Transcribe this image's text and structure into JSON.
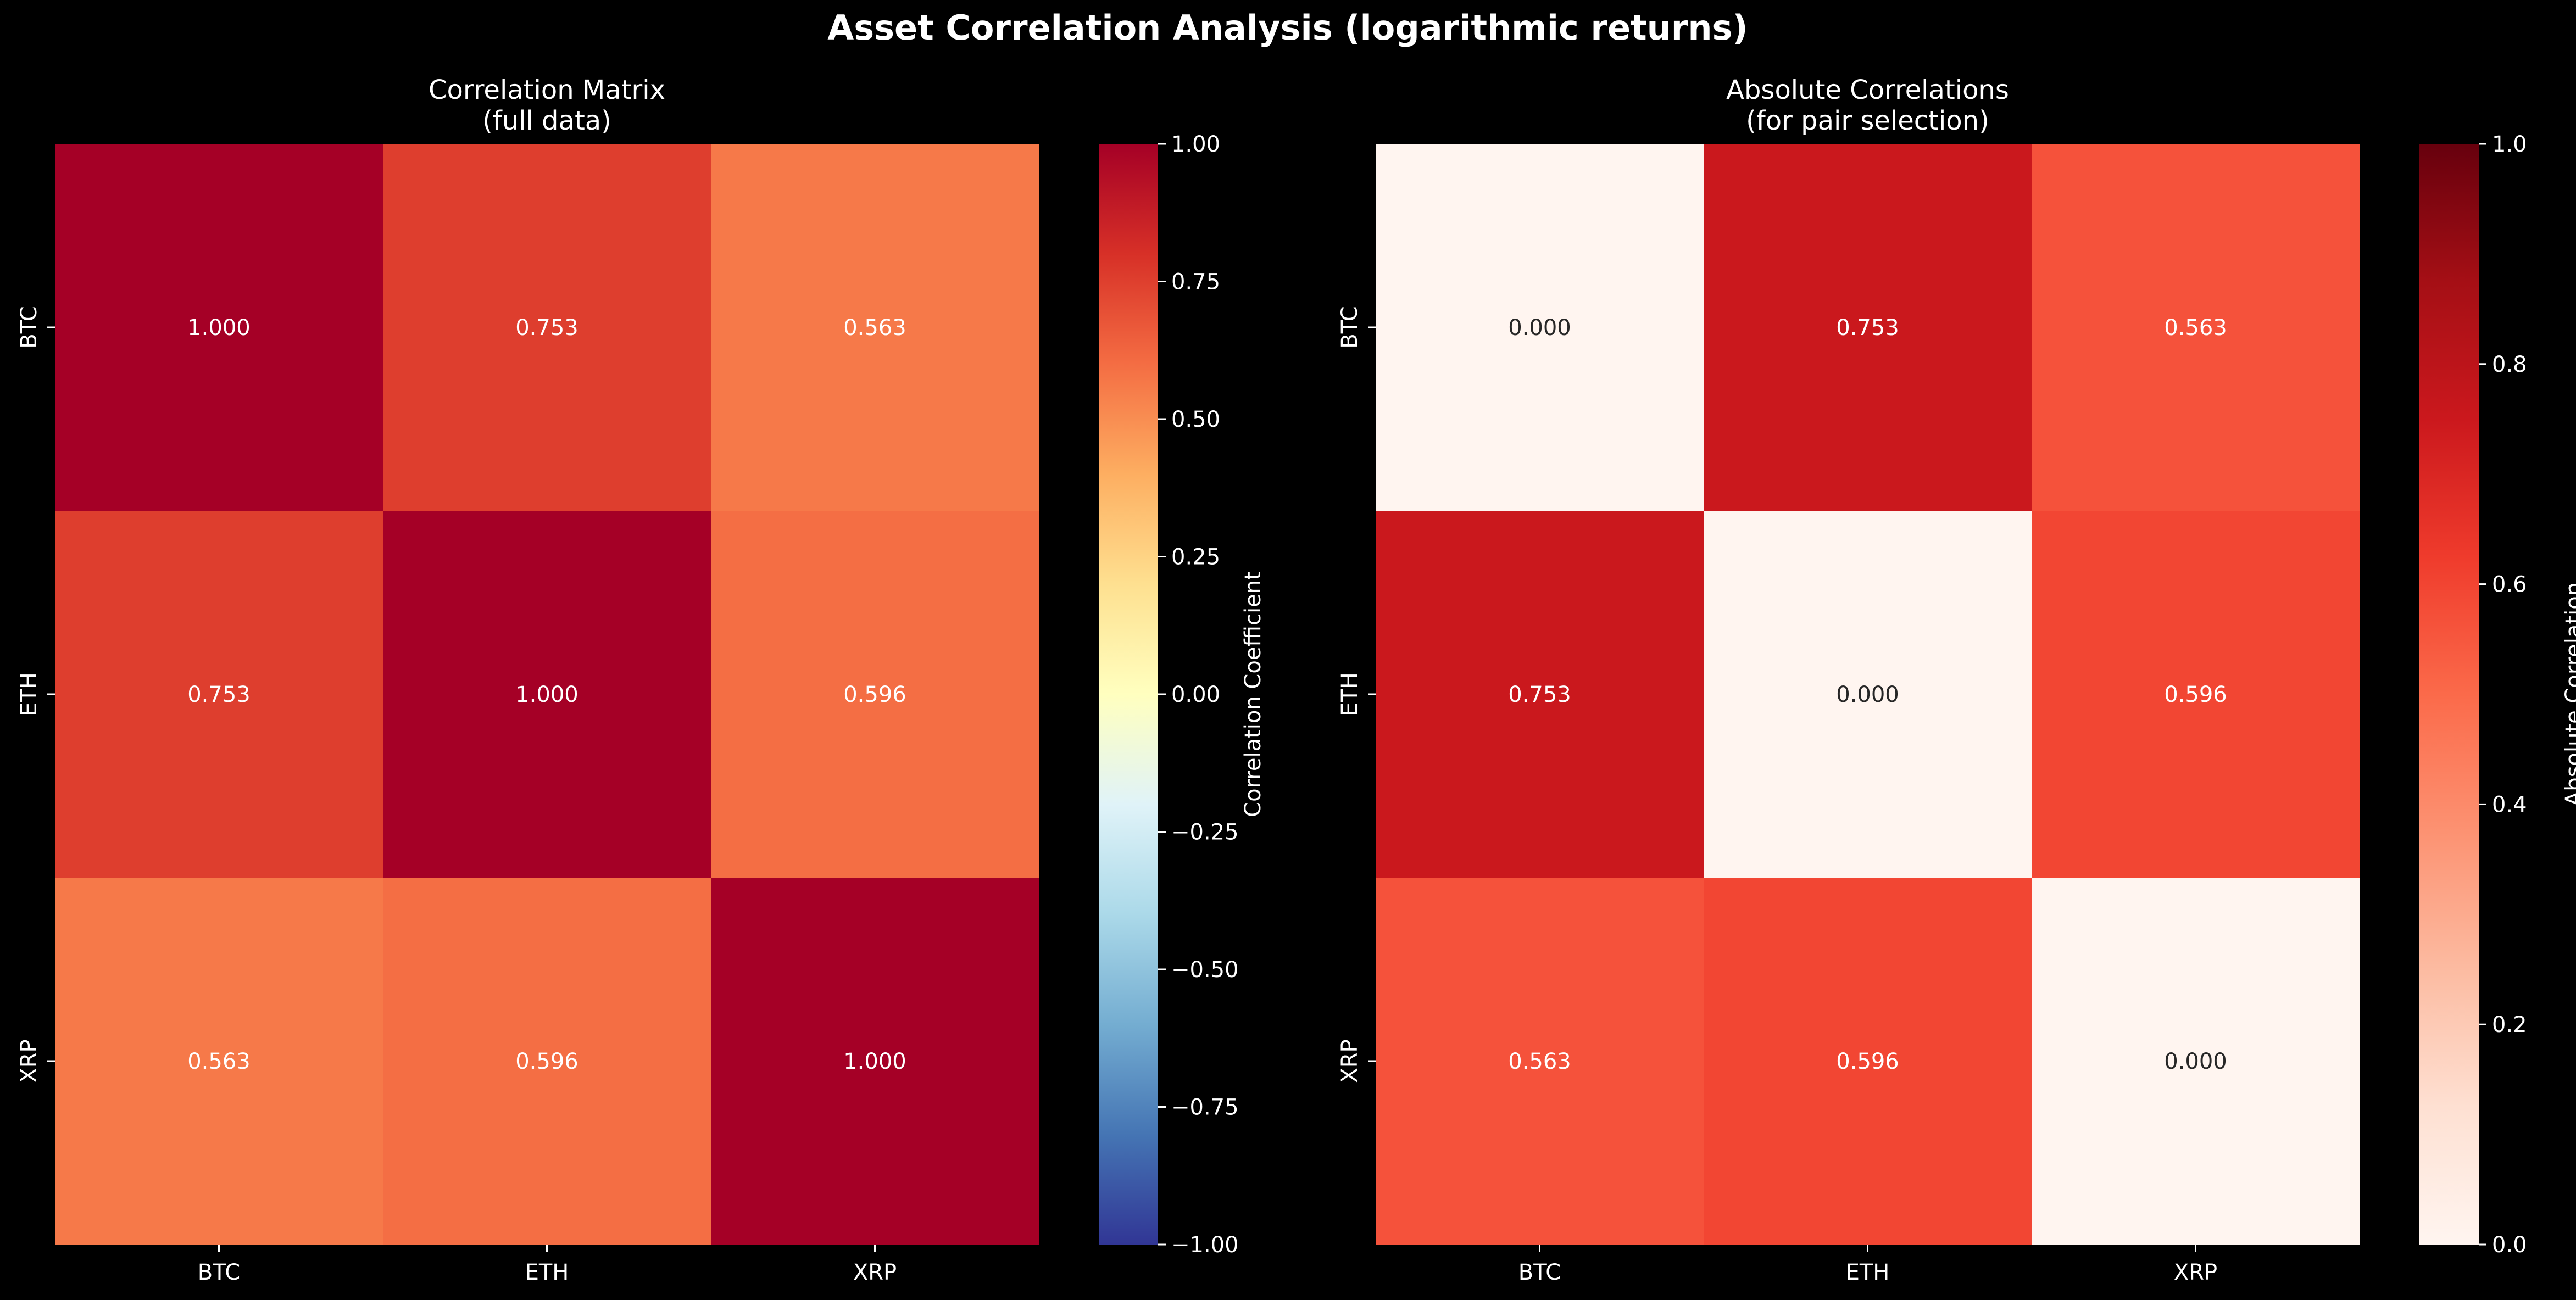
{
  "title": "Asset Correlation Analysis (logarithmic returns)",
  "chart_data": [
    {
      "type": "heatmap",
      "title": "Correlation Matrix\n(full data)",
      "x_labels": [
        "BTC",
        "ETH",
        "XRP"
      ],
      "y_labels": [
        "BTC",
        "ETH",
        "XRP"
      ],
      "values": [
        [
          1.0,
          0.753,
          0.563
        ],
        [
          0.753,
          1.0,
          0.596
        ],
        [
          0.563,
          0.596,
          1.0
        ]
      ],
      "value_format": "0.000",
      "colormap": "RdYlBu_r",
      "colorbar": {
        "label": "Correlation Coefficient",
        "range": [
          -1,
          1
        ],
        "ticks": [
          "1.00",
          "0.75",
          "0.50",
          "0.25",
          "0.00",
          "−0.25",
          "−0.50",
          "−0.75",
          "−1.00"
        ],
        "tick_values": [
          1,
          0.75,
          0.5,
          0.25,
          0,
          -0.25,
          -0.5,
          -0.75,
          -1
        ]
      }
    },
    {
      "type": "heatmap",
      "title": "Absolute Correlations\n(for pair selection)",
      "x_labels": [
        "BTC",
        "ETH",
        "XRP"
      ],
      "y_labels": [
        "BTC",
        "ETH",
        "XRP"
      ],
      "values": [
        [
          0.0,
          0.753,
          0.563
        ],
        [
          0.753,
          0.0,
          0.596
        ],
        [
          0.563,
          0.596,
          0.0
        ]
      ],
      "value_format": "0.000",
      "colormap": "Reds",
      "colorbar": {
        "label": "Absolute Correlation",
        "range": [
          0,
          1
        ],
        "ticks": [
          "1.0",
          "0.8",
          "0.6",
          "0.4",
          "0.2",
          "0.0"
        ],
        "tick_values": [
          1,
          0.8,
          0.6,
          0.4,
          0.2,
          0
        ]
      }
    }
  ]
}
